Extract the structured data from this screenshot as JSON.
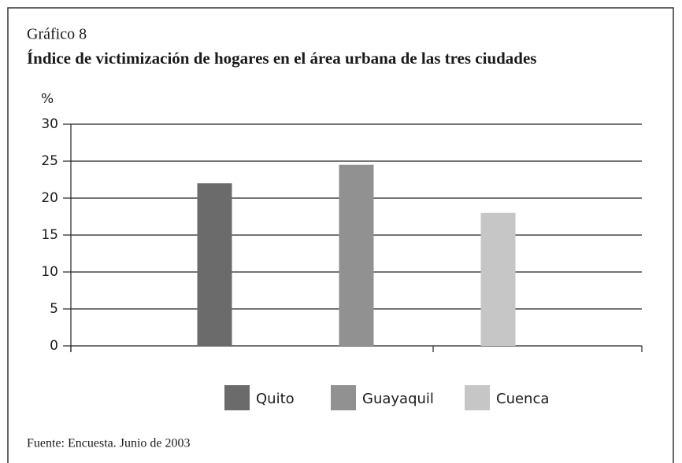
{
  "chart_data": {
    "type": "bar",
    "title": "Gráfico 8",
    "subtitle": "Índice de victimización de hogares en el área urbana de las tres ciudades",
    "ylabel": "%",
    "source": "Fuente: Encuesta. Junio de 2003",
    "categories": [
      null
    ],
    "series": [
      {
        "name": "Quito",
        "color": "#6b6b6b",
        "values": [
          22
        ]
      },
      {
        "name": "Guayaquil",
        "color": "#919191",
        "values": [
          24.5
        ]
      },
      {
        "name": "Cuenca",
        "color": "#c6c6c6",
        "values": [
          18
        ]
      }
    ],
    "ylim": [
      0,
      30
    ],
    "yticks": [
      0,
      5,
      10,
      15,
      20,
      25,
      30
    ],
    "grid": true,
    "legend": "bottom"
  }
}
